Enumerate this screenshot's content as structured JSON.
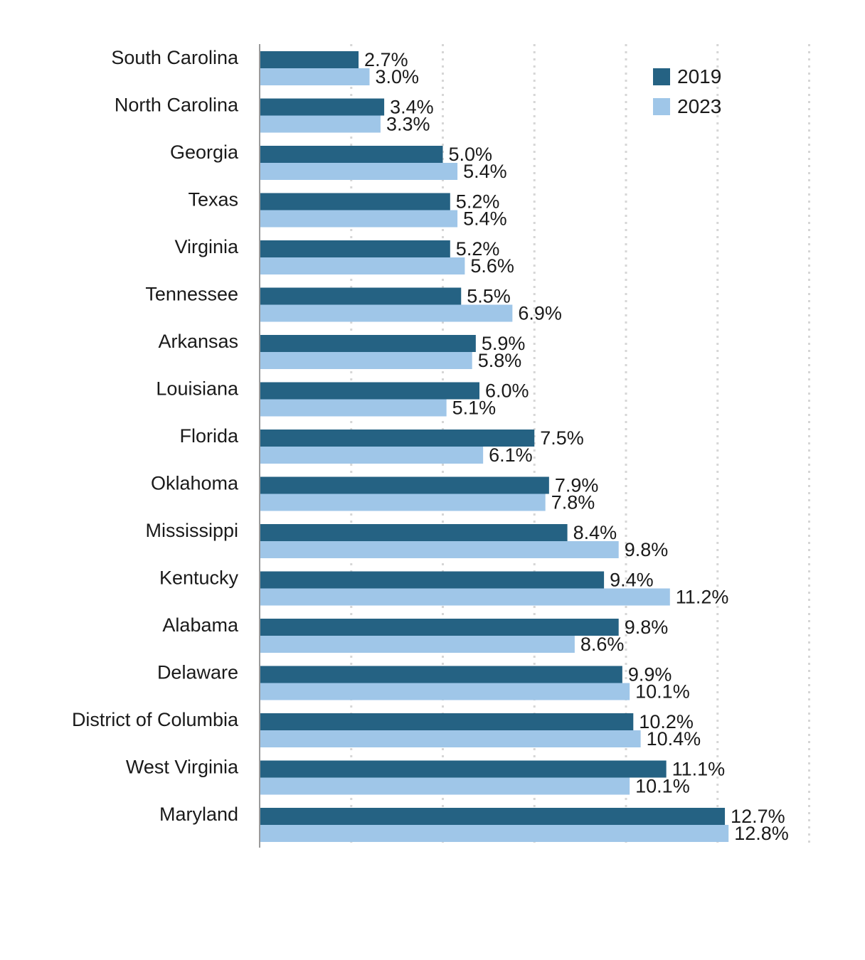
{
  "chart_data": {
    "type": "bar",
    "orientation": "horizontal",
    "title": "",
    "xlabel": "",
    "ylabel": "",
    "xlim": [
      0,
      15
    ],
    "gridlines": "vertical dotted",
    "legend_position": "top-right",
    "categories": [
      "South Carolina",
      "North Carolina",
      "Georgia",
      "Texas",
      "Virginia",
      "Tennessee",
      "Arkansas",
      "Louisiana",
      "Florida",
      "Oklahoma",
      "Mississippi",
      "Kentucky",
      "Alabama",
      "Delaware",
      "District of Columbia",
      "West Virginia",
      "Maryland"
    ],
    "series": [
      {
        "name": "2019",
        "color": "#256283",
        "values": [
          2.7,
          3.4,
          5.0,
          5.2,
          5.2,
          5.5,
          5.9,
          6.0,
          7.5,
          7.9,
          8.4,
          9.4,
          9.8,
          9.9,
          10.2,
          11.1,
          12.7
        ],
        "labels": [
          "2.7%",
          "3.4%",
          "5.0%",
          "5.2%",
          "5.2%",
          "5.5%",
          "5.9%",
          "6.0%",
          "7.5%",
          "7.9%",
          "8.4%",
          "9.4%",
          "9.8%",
          "9.9%",
          "10.2%",
          "11.1%",
          "12.7%"
        ]
      },
      {
        "name": "2023",
        "color": "#9fc6e8",
        "values": [
          3.0,
          3.3,
          5.4,
          5.4,
          5.6,
          6.9,
          5.8,
          5.1,
          6.1,
          7.8,
          9.8,
          11.2,
          8.6,
          10.1,
          10.4,
          10.1,
          12.8
        ],
        "labels": [
          "3.0%",
          "3.3%",
          "5.4%",
          "5.4%",
          "5.6%",
          "6.9%",
          "5.8%",
          "5.1%",
          "6.1%",
          "7.8%",
          "9.8%",
          "11.2%",
          "8.6%",
          "10.1%",
          "10.4%",
          "10.1%",
          "12.8%"
        ]
      }
    ]
  }
}
